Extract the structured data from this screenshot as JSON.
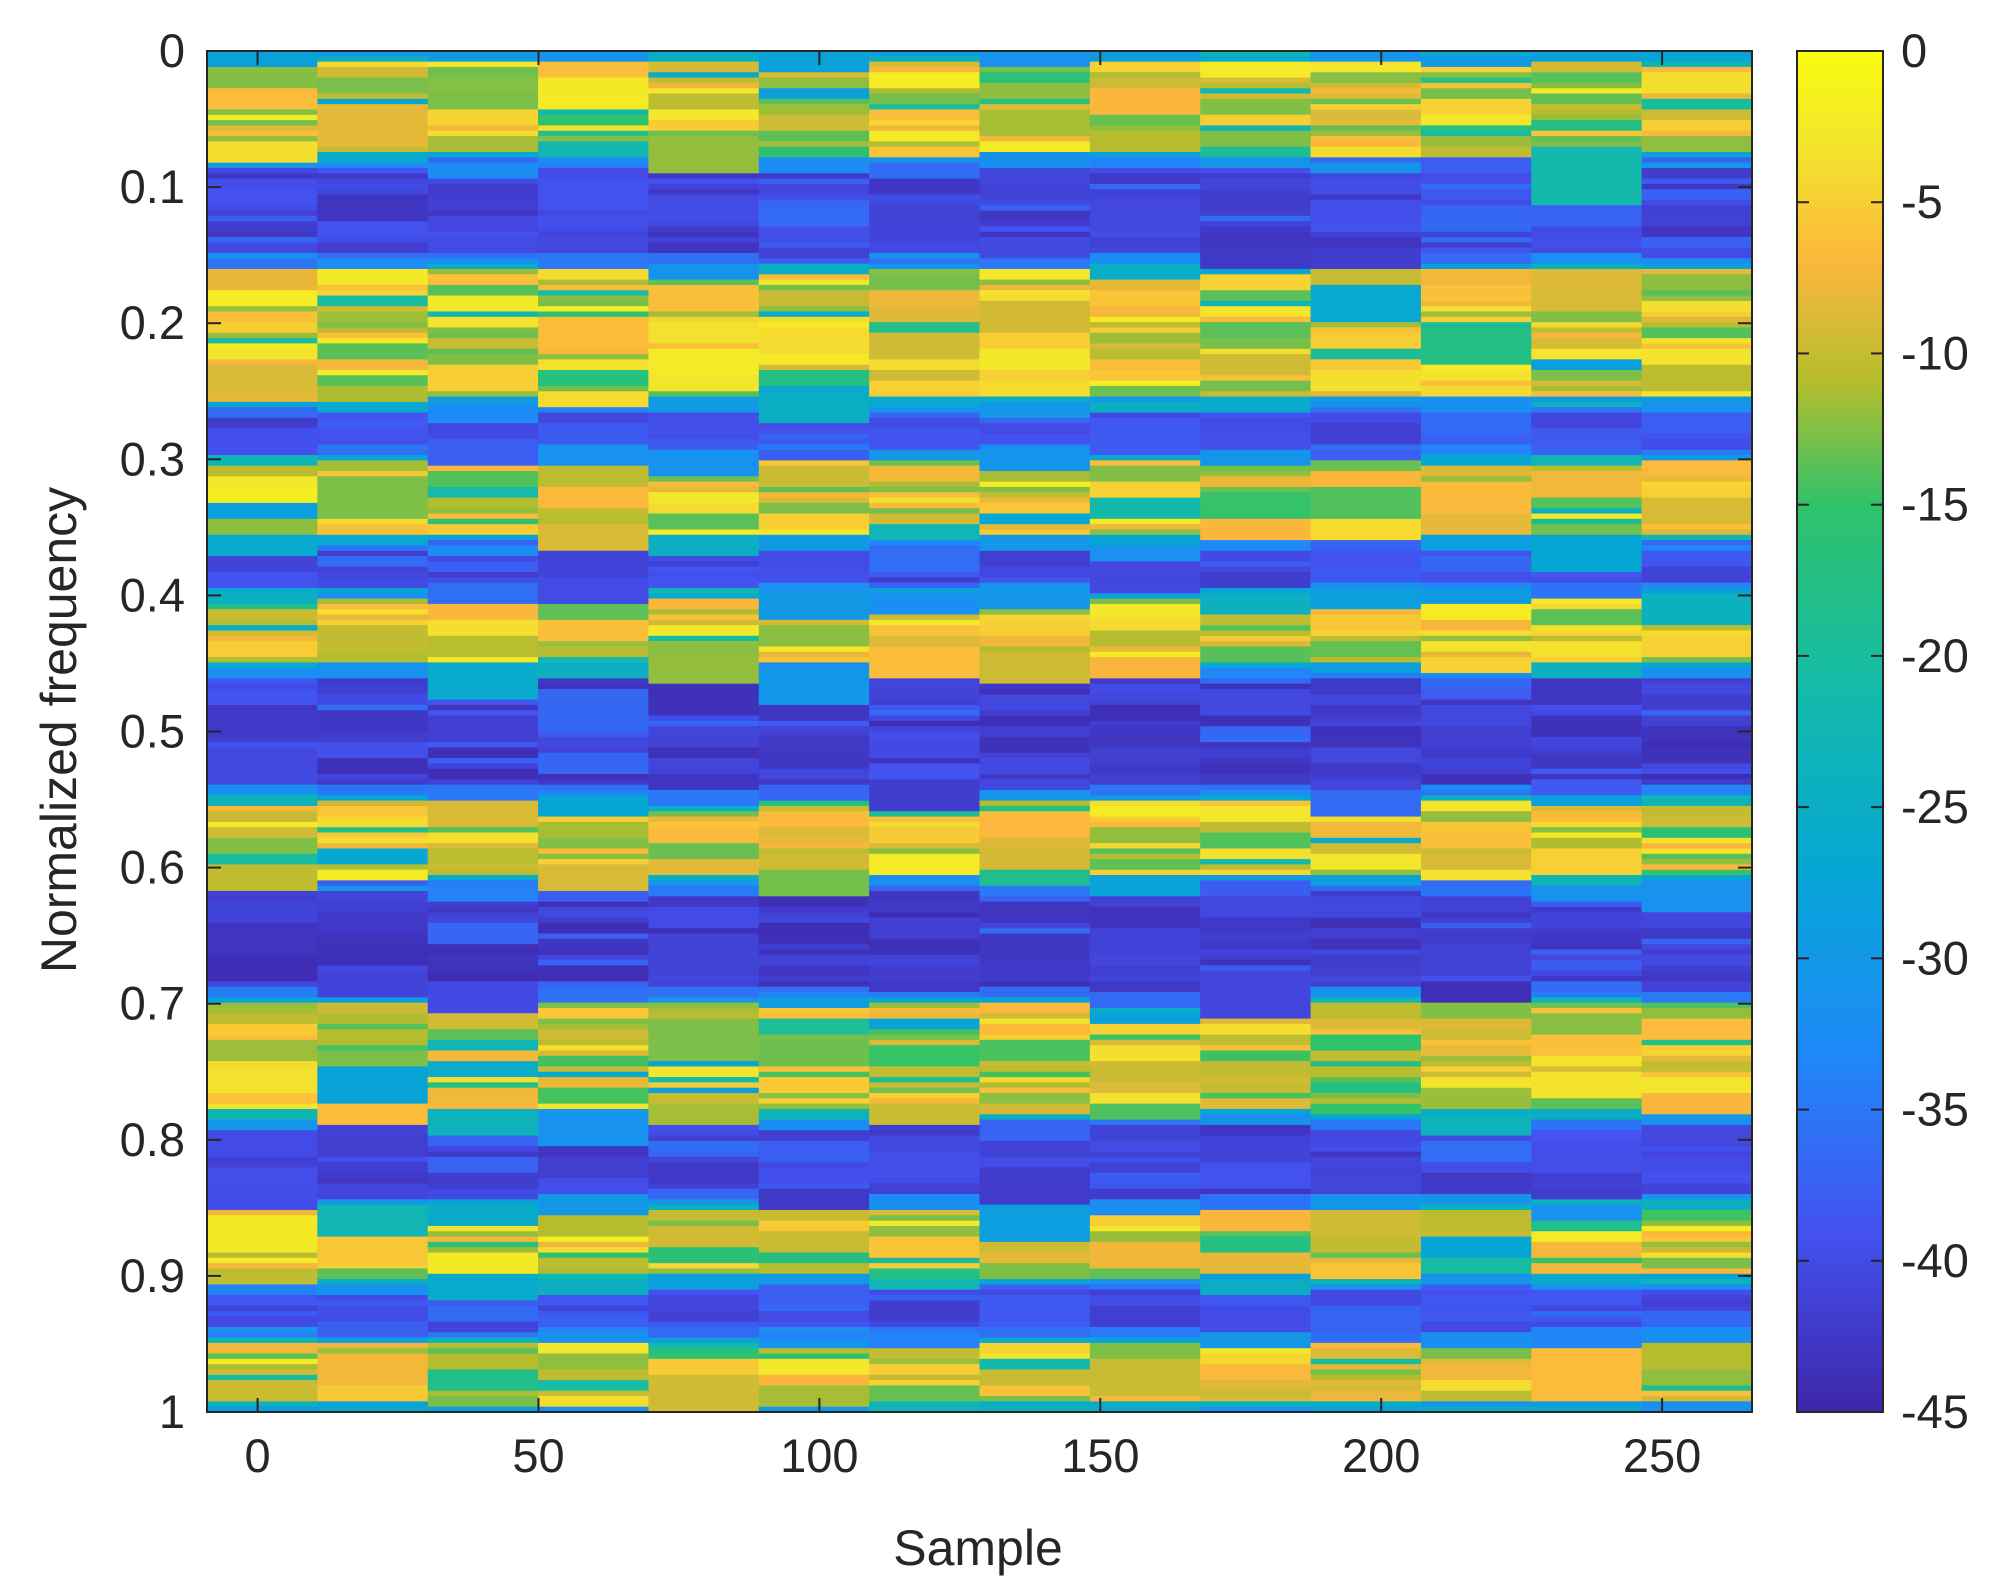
{
  "chart_data": {
    "type": "heatmap",
    "title": "",
    "xlabel": "Sample",
    "ylabel": "Normalized  frequency",
    "x_ticks": [
      0,
      50,
      100,
      150,
      200,
      250
    ],
    "x_tick_labels": [
      "0",
      "50",
      "100",
      "150",
      "200",
      "250"
    ],
    "y_ticks": [
      0,
      0.1,
      0.2,
      0.3,
      0.4,
      0.5,
      0.6,
      0.7,
      0.8,
      0.9,
      1
    ],
    "y_tick_labels": [
      "0",
      "0.1",
      "0.2",
      "0.3",
      "0.4",
      "0.5",
      "0.6",
      "0.7",
      "0.8",
      "0.9",
      "1"
    ],
    "xlim": [
      -9,
      266
    ],
    "ylim": [
      0,
      1
    ],
    "y_reversed": true,
    "colormap": "parula",
    "colorbar": {
      "range": [
        -45,
        0
      ],
      "ticks": [
        0,
        -5,
        -10,
        -15,
        -20,
        -25,
        -30,
        -35,
        -40,
        -45
      ],
      "tick_labels": [
        "0",
        "-5",
        "-10",
        "-15",
        "-20",
        "-25",
        "-30",
        "-35",
        "-40",
        "-45"
      ],
      "location": "right"
    },
    "columns": {
      "count": 14,
      "x_start": -9,
      "x_end": 266
    },
    "frequency_bins": 256,
    "bands_db": [
      {
        "from": 0.0,
        "to": 0.08,
        "level_db": -8,
        "state": "passband"
      },
      {
        "from": 0.08,
        "to": 0.155,
        "level_db": -43,
        "state": "stopband"
      },
      {
        "from": 0.155,
        "to": 0.26,
        "level_db": -8,
        "state": "passband"
      },
      {
        "from": 0.26,
        "to": 0.295,
        "level_db": -42,
        "state": "stopband"
      },
      {
        "from": 0.295,
        "to": 0.36,
        "level_db": -8,
        "state": "passband"
      },
      {
        "from": 0.36,
        "to": 0.395,
        "level_db": -42,
        "state": "stopband"
      },
      {
        "from": 0.395,
        "to": 0.455,
        "level_db": -8,
        "state": "passband"
      },
      {
        "from": 0.455,
        "to": 0.545,
        "level_db": -44,
        "state": "stopband"
      },
      {
        "from": 0.545,
        "to": 0.61,
        "level_db": -8,
        "state": "passband"
      },
      {
        "from": 0.61,
        "to": 0.695,
        "level_db": -44,
        "state": "stopband"
      },
      {
        "from": 0.695,
        "to": 0.785,
        "level_db": -9,
        "state": "passband"
      },
      {
        "from": 0.785,
        "to": 0.845,
        "level_db": -43,
        "state": "stopband"
      },
      {
        "from": 0.845,
        "to": 0.905,
        "level_db": -8,
        "state": "passband"
      },
      {
        "from": 0.905,
        "to": 0.945,
        "level_db": -42,
        "state": "stopband"
      },
      {
        "from": 0.945,
        "to": 1.0,
        "level_db": -8,
        "state": "passband"
      }
    ],
    "colormap_stops": [
      {
        "value_db": -45,
        "color": "#3e26a8"
      },
      {
        "value_db": -39,
        "color": "#4352f0"
      },
      {
        "value_db": -33,
        "color": "#1e8af8"
      },
      {
        "value_db": -27,
        "color": "#06a6d4"
      },
      {
        "value_db": -21,
        "color": "#14bba8"
      },
      {
        "value_db": -15,
        "color": "#30c26a"
      },
      {
        "value_db": -11,
        "color": "#b4bd2f"
      },
      {
        "value_db": -7,
        "color": "#fbb73c"
      },
      {
        "value_db": -3,
        "color": "#f3e62c"
      },
      {
        "value_db": 0,
        "color": "#f9fb0e"
      }
    ]
  }
}
